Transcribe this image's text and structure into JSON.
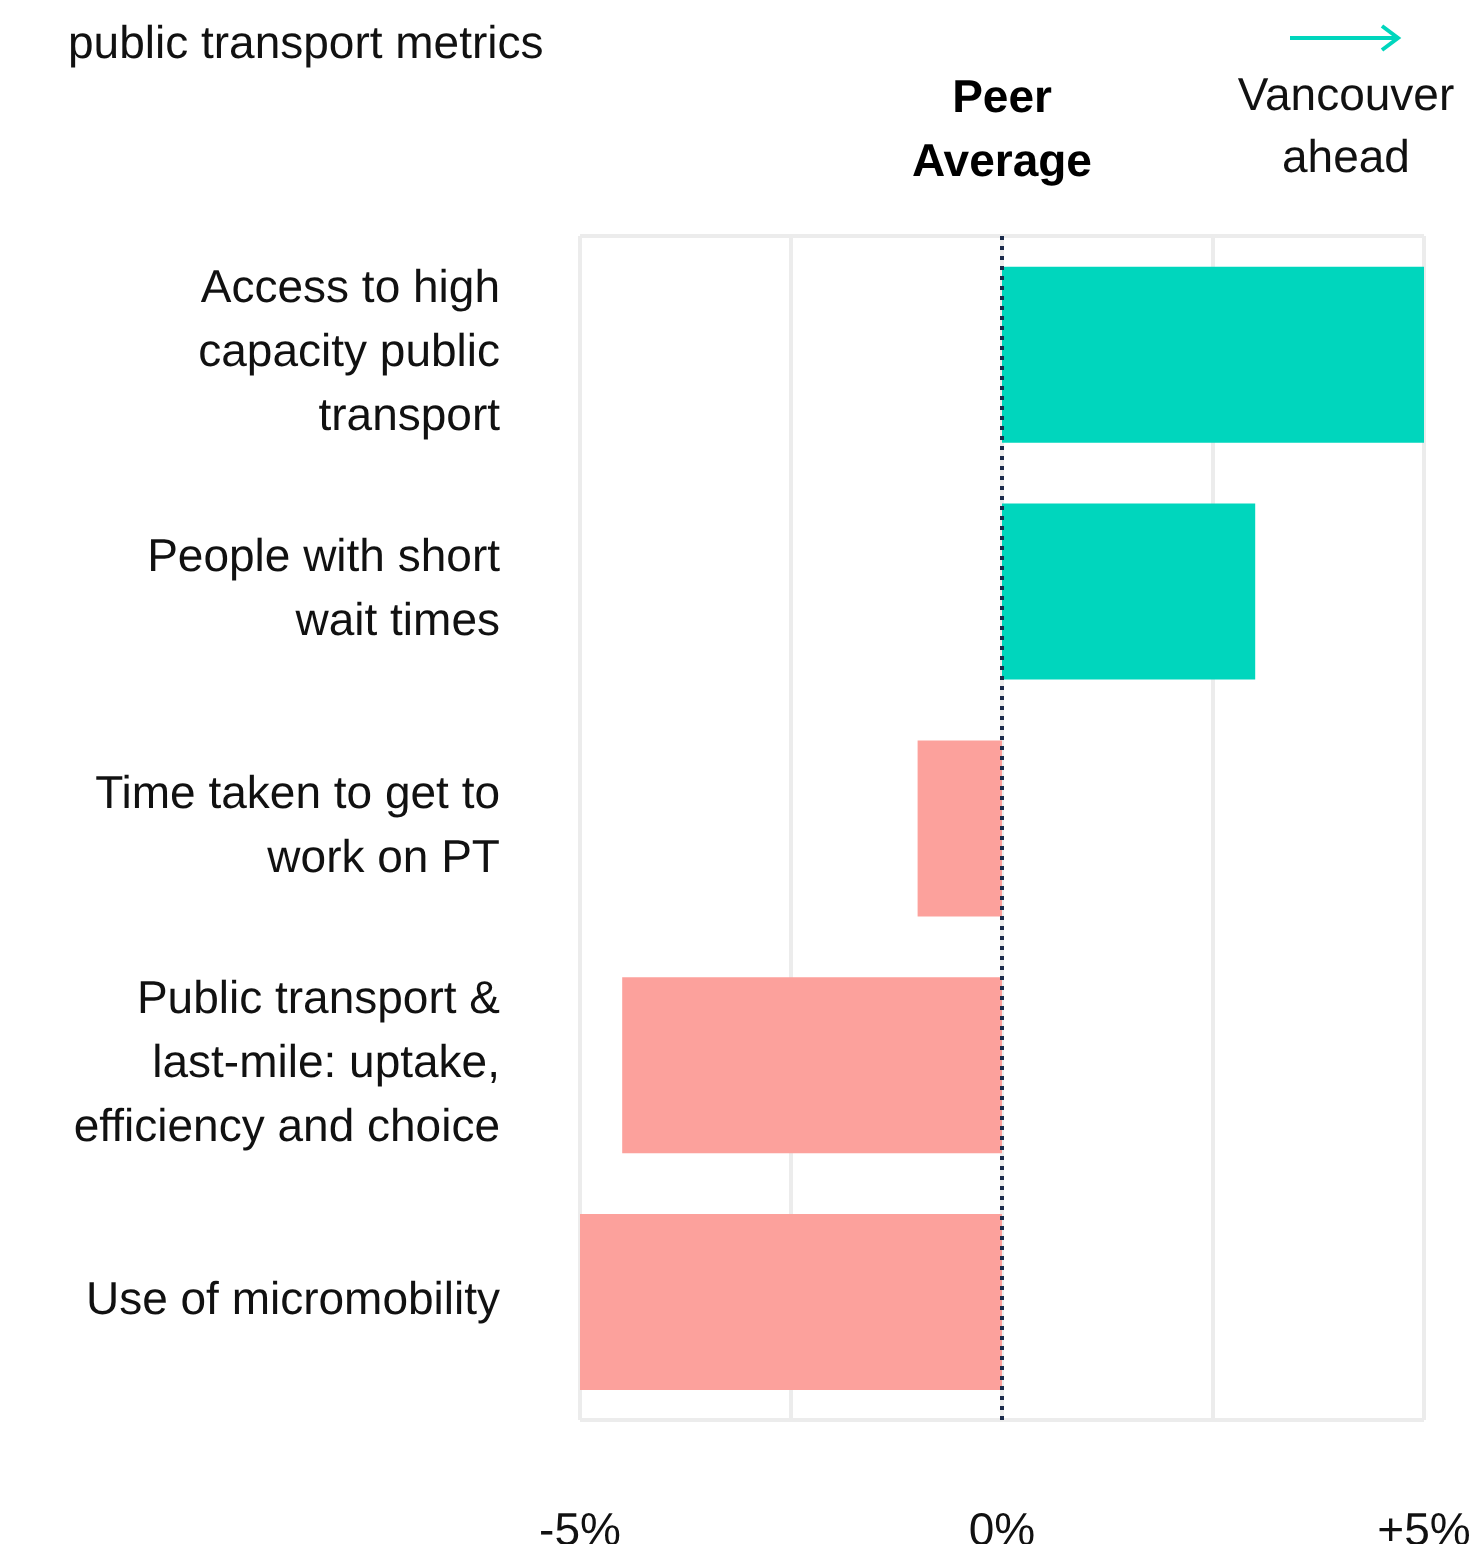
{
  "chart_data": {
    "type": "bar",
    "orientation": "horizontal",
    "title": "public transport metrics",
    "categories": [
      "Access to high capacity public transport",
      "People with short wait times",
      "Time taken to get to work on PT",
      "Public transport & last-mile: uptake, efficiency and choice",
      "Use of micromobility"
    ],
    "values": [
      5.0,
      3.0,
      -1.0,
      -4.5,
      -5.0
    ],
    "colors": [
      "#00d6bd",
      "#00d6bd",
      "#fca19c",
      "#fca19c",
      "#fca19c"
    ],
    "xlim": [
      -5,
      5
    ],
    "xticks": [
      {
        "value": -5,
        "label": "-5%"
      },
      {
        "value": -2.5,
        "label": null
      },
      {
        "value": 0,
        "label": "0%"
      },
      {
        "value": 2.5,
        "label": null
      },
      {
        "value": 5,
        "label": "+5%"
      }
    ],
    "ref_lines": [
      {
        "axis": "x",
        "value": 0,
        "label": "Peer Average",
        "color": "#1a2a4a",
        "line_style": "dotted"
      }
    ],
    "annotations": [
      "Vancouver ahead"
    ],
    "grid": "x",
    "legend": false
  }
}
